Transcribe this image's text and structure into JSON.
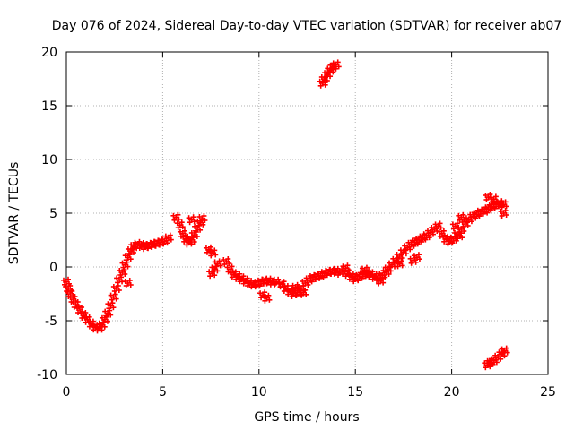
{
  "chart_data": {
    "type": "scatter",
    "title": "Day 076 of 2024, Sidereal Day-to-day VTEC variation (SDTVAR) for receiver ab07",
    "xlabel": "GPS time / hours",
    "ylabel": "SDTVAR / TECUs",
    "xlim": [
      0,
      25
    ],
    "ylim": [
      -10,
      20
    ],
    "xticks": [
      0,
      5,
      10,
      15,
      20,
      25
    ],
    "yticks": [
      -10,
      -5,
      0,
      5,
      10,
      15,
      20
    ],
    "grid": true,
    "marker": "+",
    "color": "#ff0000",
    "series": [
      {
        "name": "SDTVAR",
        "points": [
          [
            0.0,
            -1.4
          ],
          [
            0.1,
            -2.0
          ],
          [
            0.2,
            -2.5
          ],
          [
            0.35,
            -3.0
          ],
          [
            0.5,
            -3.5
          ],
          [
            0.7,
            -4.0
          ],
          [
            0.9,
            -4.5
          ],
          [
            1.1,
            -4.9
          ],
          [
            1.3,
            -5.3
          ],
          [
            1.5,
            -5.6
          ],
          [
            1.7,
            -5.7
          ],
          [
            1.85,
            -5.4
          ],
          [
            2.0,
            -4.9
          ],
          [
            2.15,
            -4.3
          ],
          [
            2.3,
            -3.6
          ],
          [
            2.45,
            -2.8
          ],
          [
            2.6,
            -2.0
          ],
          [
            2.75,
            -1.2
          ],
          [
            2.9,
            -0.5
          ],
          [
            3.05,
            0.2
          ],
          [
            3.2,
            0.9
          ],
          [
            3.35,
            1.5
          ],
          [
            3.5,
            1.9
          ],
          [
            3.7,
            2.1
          ],
          [
            3.9,
            2.0
          ],
          [
            4.1,
            1.9
          ],
          [
            4.3,
            2.0
          ],
          [
            4.5,
            2.1
          ],
          [
            4.7,
            2.2
          ],
          [
            4.9,
            2.3
          ],
          [
            5.1,
            2.4
          ],
          [
            5.3,
            2.7
          ],
          [
            3.2,
            -1.5
          ],
          [
            5.7,
            4.6
          ],
          [
            5.9,
            3.9
          ],
          [
            6.05,
            3.1
          ],
          [
            6.2,
            2.6
          ],
          [
            6.35,
            2.3
          ],
          [
            6.5,
            2.5
          ],
          [
            6.65,
            3.0
          ],
          [
            6.8,
            3.6
          ],
          [
            6.95,
            4.1
          ],
          [
            7.05,
            4.5
          ],
          [
            6.5,
            4.4
          ],
          [
            7.4,
            1.6
          ],
          [
            7.6,
            1.3
          ],
          [
            7.7,
            -0.2
          ],
          [
            7.85,
            0.3
          ],
          [
            7.55,
            -0.6
          ],
          [
            8.3,
            0.5
          ],
          [
            8.5,
            -0.2
          ],
          [
            8.7,
            -0.7
          ],
          [
            8.9,
            -0.9
          ],
          [
            9.1,
            -1.1
          ],
          [
            9.3,
            -1.3
          ],
          [
            9.5,
            -1.5
          ],
          [
            9.7,
            -1.6
          ],
          [
            9.9,
            -1.6
          ],
          [
            10.1,
            -1.4
          ],
          [
            10.3,
            -1.3
          ],
          [
            10.5,
            -1.3
          ],
          [
            10.7,
            -1.4
          ],
          [
            10.9,
            -1.4
          ],
          [
            10.2,
            -2.6
          ],
          [
            10.4,
            -2.9
          ],
          [
            11.2,
            -1.6
          ],
          [
            11.4,
            -2.0
          ],
          [
            11.6,
            -2.3
          ],
          [
            11.8,
            -2.5
          ],
          [
            12.0,
            -2.4
          ],
          [
            12.2,
            -2.0
          ],
          [
            12.4,
            -1.5
          ],
          [
            12.6,
            -1.2
          ],
          [
            12.8,
            -1.0
          ],
          [
            13.0,
            -0.9
          ],
          [
            13.2,
            -0.8
          ],
          [
            13.4,
            -0.6
          ],
          [
            13.6,
            -0.5
          ],
          [
            13.8,
            -0.4
          ],
          [
            14.0,
            -0.4
          ],
          [
            14.2,
            -0.5
          ],
          [
            11.9,
            -1.9
          ],
          [
            12.3,
            -2.4
          ],
          [
            13.3,
            17.1
          ],
          [
            13.4,
            17.5
          ],
          [
            13.55,
            17.9
          ],
          [
            13.7,
            18.3
          ],
          [
            13.85,
            18.6
          ],
          [
            14.0,
            18.8
          ],
          [
            14.6,
            -0.6
          ],
          [
            14.8,
            -0.9
          ],
          [
            15.0,
            -1.1
          ],
          [
            15.2,
            -0.9
          ],
          [
            15.4,
            -0.7
          ],
          [
            15.6,
            -0.6
          ],
          [
            15.8,
            -0.7
          ],
          [
            16.0,
            -0.9
          ],
          [
            16.2,
            -1.0
          ],
          [
            16.4,
            -0.8
          ],
          [
            16.6,
            -0.5
          ],
          [
            14.5,
            -0.1
          ],
          [
            15.5,
            -0.3
          ],
          [
            16.3,
            -1.3
          ],
          [
            16.7,
            -0.2
          ],
          [
            16.9,
            0.2
          ],
          [
            17.1,
            0.6
          ],
          [
            17.3,
            1.0
          ],
          [
            17.5,
            1.4
          ],
          [
            17.7,
            1.8
          ],
          [
            17.9,
            2.1
          ],
          [
            18.1,
            2.3
          ],
          [
            18.3,
            2.5
          ],
          [
            18.5,
            2.7
          ],
          [
            18.7,
            2.9
          ],
          [
            18.9,
            3.2
          ],
          [
            19.1,
            3.5
          ],
          [
            19.3,
            3.8
          ],
          [
            18.0,
            0.6
          ],
          [
            18.2,
            0.9
          ],
          [
            17.3,
            0.3
          ],
          [
            19.5,
            3.1
          ],
          [
            19.7,
            2.6
          ],
          [
            19.9,
            2.4
          ],
          [
            20.1,
            2.6
          ],
          [
            20.3,
            3.0
          ],
          [
            20.5,
            3.5
          ],
          [
            20.7,
            4.0
          ],
          [
            20.9,
            4.4
          ],
          [
            21.1,
            4.7
          ],
          [
            21.3,
            4.9
          ],
          [
            21.5,
            5.1
          ],
          [
            21.7,
            5.2
          ],
          [
            21.9,
            5.4
          ],
          [
            22.1,
            5.6
          ],
          [
            22.3,
            5.8
          ],
          [
            22.5,
            5.9
          ],
          [
            22.7,
            5.8
          ],
          [
            20.2,
            3.8
          ],
          [
            20.5,
            4.6
          ],
          [
            21.9,
            6.5
          ],
          [
            22.2,
            6.3
          ],
          [
            22.7,
            5.0
          ],
          [
            20.4,
            2.9
          ],
          [
            21.85,
            -9.1
          ],
          [
            22.0,
            -8.9
          ],
          [
            22.2,
            -8.7
          ],
          [
            22.4,
            -8.4
          ],
          [
            22.6,
            -8.1
          ],
          [
            22.75,
            -7.8
          ]
        ]
      }
    ]
  }
}
